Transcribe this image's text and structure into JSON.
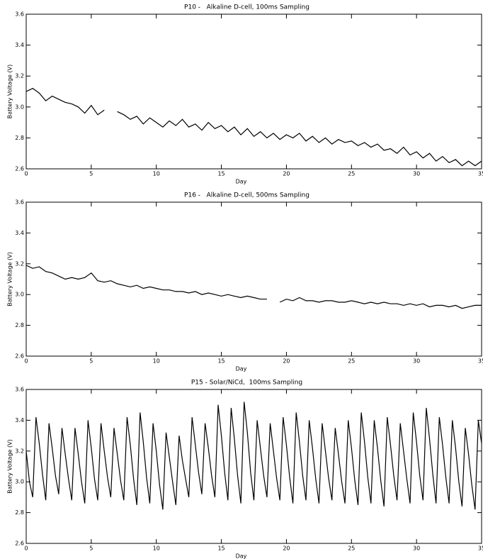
{
  "chart_data": [
    {
      "type": "line",
      "title": "P10 -   Alkaline D-cell, 100ms Sampling",
      "xlabel": "Day",
      "ylabel": "Battery Voltage (V)",
      "x": [
        0,
        0.5,
        1,
        1.5,
        2,
        2.5,
        3,
        3.5,
        4,
        4.5,
        5,
        5.5,
        6,
        6.5,
        7,
        7.5,
        8,
        8.5,
        9,
        9.5,
        10,
        10.5,
        11,
        11.5,
        12,
        12.5,
        13,
        13.5,
        14,
        14.5,
        15,
        15.5,
        16,
        16.5,
        17,
        17.5,
        18,
        18.5,
        19,
        19.5,
        20,
        20.5,
        21,
        21.5,
        22,
        22.5,
        23,
        23.5,
        24,
        24.5,
        25,
        25.5,
        26,
        26.5,
        27,
        27.5,
        28,
        28.5,
        29,
        29.5,
        30,
        30.5,
        31,
        31.5,
        32,
        32.5,
        33,
        33.5,
        34,
        34.5,
        35
      ],
      "series": [
        {
          "color": "#000000",
          "values": [
            3.1,
            3.12,
            3.09,
            3.04,
            3.07,
            3.05,
            3.03,
            3.02,
            3.0,
            2.96,
            3.01,
            2.95,
            2.98,
            null,
            2.97,
            2.95,
            2.92,
            2.94,
            2.89,
            2.93,
            2.9,
            2.87,
            2.91,
            2.88,
            2.92,
            2.87,
            2.89,
            2.85,
            2.9,
            2.86,
            2.88,
            2.84,
            2.87,
            2.82,
            2.86,
            2.81,
            2.84,
            2.8,
            2.83,
            2.79,
            2.82,
            2.8,
            2.83,
            2.78,
            2.81,
            2.77,
            2.8,
            2.76,
            2.79,
            2.77,
            2.78,
            2.75,
            2.77,
            2.74,
            2.76,
            2.72,
            2.73,
            2.7,
            2.74,
            2.69,
            2.71,
            2.67,
            2.7,
            2.65,
            2.68,
            2.64,
            2.66,
            2.62,
            2.65,
            2.62,
            2.65
          ]
        }
      ],
      "xlim": [
        0,
        35
      ],
      "ylim": [
        2.6,
        3.6
      ],
      "xticks": [
        0,
        5,
        10,
        15,
        20,
        25,
        30,
        35
      ],
      "yticks": [
        2.6,
        2.8,
        {
          "value": 3,
          "label": "3.0"
        },
        3.2,
        3.4,
        3.6
      ]
    },
    {
      "type": "line",
      "title": "P16 -   Alkaline D-cell, 500ms Sampling",
      "xlabel": "Day",
      "ylabel": "Battery Voltage (V)",
      "x": [
        0,
        0.5,
        1,
        1.5,
        2,
        2.5,
        3,
        3.5,
        4,
        4.5,
        5,
        5.5,
        6,
        6.5,
        7,
        7.5,
        8,
        8.5,
        9,
        9.5,
        10,
        10.5,
        11,
        11.5,
        12,
        12.5,
        13,
        13.5,
        14,
        14.5,
        15,
        15.5,
        16,
        16.5,
        17,
        17.5,
        18,
        18.5,
        19,
        19.5,
        20,
        20.5,
        21,
        21.5,
        22,
        22.5,
        23,
        23.5,
        24,
        24.5,
        25,
        25.5,
        26,
        26.5,
        27,
        27.5,
        28,
        28.5,
        29,
        29.5,
        30,
        30.5,
        31,
        31.5,
        32,
        32.5,
        33,
        33.5,
        34,
        34.5,
        35
      ],
      "series": [
        {
          "color": "#000000",
          "values": [
            3.19,
            3.17,
            3.18,
            3.15,
            3.14,
            3.12,
            3.1,
            3.11,
            3.1,
            3.11,
            3.14,
            3.09,
            3.08,
            3.09,
            3.07,
            3.06,
            3.05,
            3.06,
            3.04,
            3.05,
            3.04,
            3.03,
            3.03,
            3.02,
            3.02,
            3.01,
            3.02,
            3.0,
            3.01,
            3.0,
            2.99,
            3.0,
            2.99,
            2.98,
            2.99,
            2.98,
            2.97,
            2.97,
            null,
            2.95,
            2.97,
            2.96,
            2.98,
            2.96,
            2.96,
            2.95,
            2.96,
            2.96,
            2.95,
            2.95,
            2.96,
            2.95,
            2.94,
            2.95,
            2.94,
            2.95,
            2.94,
            2.94,
            2.93,
            2.94,
            2.93,
            2.94,
            2.92,
            2.93,
            2.93,
            2.92,
            2.93,
            2.91,
            2.92,
            2.93,
            2.93
          ]
        }
      ],
      "xlim": [
        0,
        35
      ],
      "ylim": [
        2.6,
        3.6
      ],
      "xticks": [
        0,
        5,
        10,
        15,
        20,
        25,
        30,
        35
      ],
      "yticks": [
        2.6,
        2.8,
        {
          "value": 3,
          "label": "3.0"
        },
        3.2,
        3.4,
        3.6
      ]
    },
    {
      "type": "line",
      "title": "P15 - Solar/NiCd,  100ms Sampling",
      "xlabel": "Day",
      "ylabel": "Battery Voltage (V)",
      "x": [
        0,
        0.25,
        0.5,
        0.75,
        1,
        1.25,
        1.5,
        1.75,
        2,
        2.25,
        2.5,
        2.75,
        3,
        3.25,
        3.5,
        3.75,
        4,
        4.25,
        4.5,
        4.75,
        5,
        5.25,
        5.5,
        5.75,
        6,
        6.25,
        6.5,
        6.75,
        7,
        7.25,
        7.5,
        7.75,
        8,
        8.25,
        8.5,
        8.75,
        9,
        9.25,
        9.5,
        9.75,
        10,
        10.25,
        10.5,
        10.75,
        11,
        11.25,
        11.5,
        11.75,
        12,
        12.25,
        12.5,
        12.75,
        13,
        13.25,
        13.5,
        13.75,
        14,
        14.25,
        14.5,
        14.75,
        15,
        15.25,
        15.5,
        15.75,
        16,
        16.25,
        16.5,
        16.75,
        17,
        17.25,
        17.5,
        17.75,
        18,
        18.25,
        18.5,
        18.75,
        19,
        19.25,
        19.5,
        19.75,
        20,
        20.25,
        20.5,
        20.75,
        21,
        21.25,
        21.5,
        21.75,
        22,
        22.25,
        22.5,
        22.75,
        23,
        23.25,
        23.5,
        23.75,
        24,
        24.25,
        24.5,
        24.75,
        25,
        25.25,
        25.5,
        25.75,
        26,
        26.25,
        26.5,
        26.75,
        27,
        27.25,
        27.5,
        27.75,
        28,
        28.25,
        28.5,
        28.75,
        29,
        29.25,
        29.5,
        29.75,
        30,
        30.25,
        30.5,
        30.75,
        31,
        31.25,
        31.5,
        31.75,
        32,
        32.25,
        32.5,
        32.75,
        33,
        33.25,
        33.5,
        33.75,
        34,
        34.25,
        34.5,
        34.75,
        35
      ],
      "series": [
        {
          "color": "#000000",
          "values": [
            3.2,
            3.0,
            2.9,
            3.42,
            3.25,
            3.05,
            2.88,
            3.38,
            3.22,
            3.04,
            2.92,
            3.35,
            3.18,
            3.02,
            2.88,
            3.35,
            3.18,
            3.0,
            2.86,
            3.4,
            3.22,
            3.02,
            2.88,
            3.38,
            3.2,
            3.03,
            2.9,
            3.35,
            3.18,
            3.01,
            2.88,
            3.42,
            3.24,
            3.02,
            2.85,
            3.45,
            3.26,
            3.03,
            2.86,
            3.38,
            3.2,
            2.98,
            2.82,
            3.32,
            3.16,
            3.0,
            2.85,
            3.3,
            3.14,
            3.02,
            2.9,
            3.42,
            3.24,
            3.06,
            2.92,
            3.38,
            3.22,
            3.04,
            2.9,
            3.5,
            3.3,
            3.06,
            2.88,
            3.48,
            3.28,
            3.04,
            2.86,
            3.52,
            3.32,
            3.06,
            2.88,
            3.4,
            3.22,
            3.04,
            2.9,
            3.38,
            3.2,
            3.02,
            2.88,
            3.42,
            3.24,
            3.03,
            2.86,
            3.45,
            3.26,
            3.04,
            2.88,
            3.4,
            3.22,
            3.02,
            2.86,
            3.38,
            3.2,
            3.02,
            2.88,
            3.35,
            3.18,
            3.0,
            2.86,
            3.4,
            3.22,
            3.01,
            2.85,
            3.45,
            3.26,
            3.03,
            2.86,
            3.4,
            3.22,
            3.01,
            2.84,
            3.42,
            3.24,
            3.04,
            2.88,
            3.38,
            3.2,
            3.02,
            2.86,
            3.45,
            3.26,
            3.04,
            2.88,
            3.48,
            3.28,
            3.05,
            2.86,
            3.42,
            3.24,
            3.03,
            2.86,
            3.4,
            3.22,
            3.0,
            2.84,
            3.35,
            3.18,
            2.98,
            2.82,
            3.4,
            3.25
          ]
        }
      ],
      "xlim": [
        0,
        35
      ],
      "ylim": [
        2.6,
        3.6
      ],
      "xticks": [
        0,
        5,
        10,
        15,
        20,
        25,
        30,
        35
      ],
      "yticks": [
        2.6,
        2.8,
        {
          "value": 3,
          "label": "3.0"
        },
        3.2,
        3.4,
        3.6
      ]
    }
  ]
}
